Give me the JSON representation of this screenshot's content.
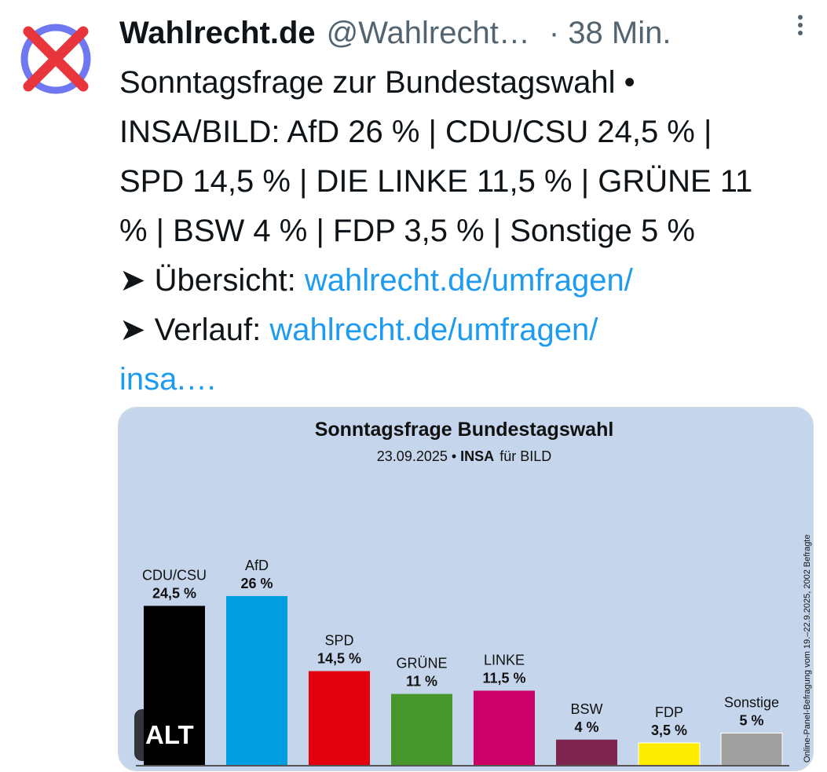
{
  "tweet": {
    "display_name": "Wahlrecht.de",
    "handle": "@Wahlrecht…",
    "time": "· 38 Min.",
    "lines": [
      "Sonntagsfrage zur Bundestagswahl •",
      "INSA/BILD: AfD 26 % | CDU/CSU 24,5 % |",
      "SPD 14,5 % | DIE LINKE 11,5 % | GRÜNE 11",
      "% | BSW 4 % | FDP 3,5 % | Sonstige 5 %"
    ],
    "overview_prefix": "➤ Übersicht: ",
    "overview_link": "wahlrecht.de/umfragen/",
    "history_prefix": "➤ Verlauf: ",
    "history_link_1": "wahlrecht.de/umfragen/",
    "history_link_2": "insa.…",
    "alt_label": "ALT",
    "avatar_icon": "x-mark-ballot-icon",
    "more_icon": "more-vertical-icon"
  },
  "colors": {
    "link": "#1d9bf0",
    "chart_background": "#c5d6ec",
    "avatar_ring": "#6f78f0",
    "avatar_cross": "#e8343b"
  },
  "chart_data": {
    "type": "bar",
    "title": "Sonntagsfrage Bundestagswahl",
    "subtitle_date": "23.09.2025 •",
    "subtitle_institute": "INSA",
    "subtitle_client": "für BILD",
    "side_note": "Online-Panel-Befragung vom 19.–22.9.2025, 2002 Befragte",
    "categories": [
      "CDU/CSU",
      "AfD",
      "SPD",
      "GRÜNE",
      "LINKE",
      "BSW",
      "FDP",
      "Sonstige"
    ],
    "values": [
      24.5,
      26,
      14.5,
      11,
      11.5,
      4,
      3.5,
      5
    ],
    "value_labels": [
      "24,5 %",
      "26 %",
      "14,5 %",
      "11 %",
      "11,5 %",
      "4 %",
      "3,5 %",
      "5 %"
    ],
    "colors": [
      "#000000",
      "#009ee0",
      "#e3000f",
      "#46962b",
      "#cc0066",
      "#7d254f",
      "#ffed00",
      "#a0a0a0"
    ],
    "ylim": [
      0,
      26
    ]
  }
}
